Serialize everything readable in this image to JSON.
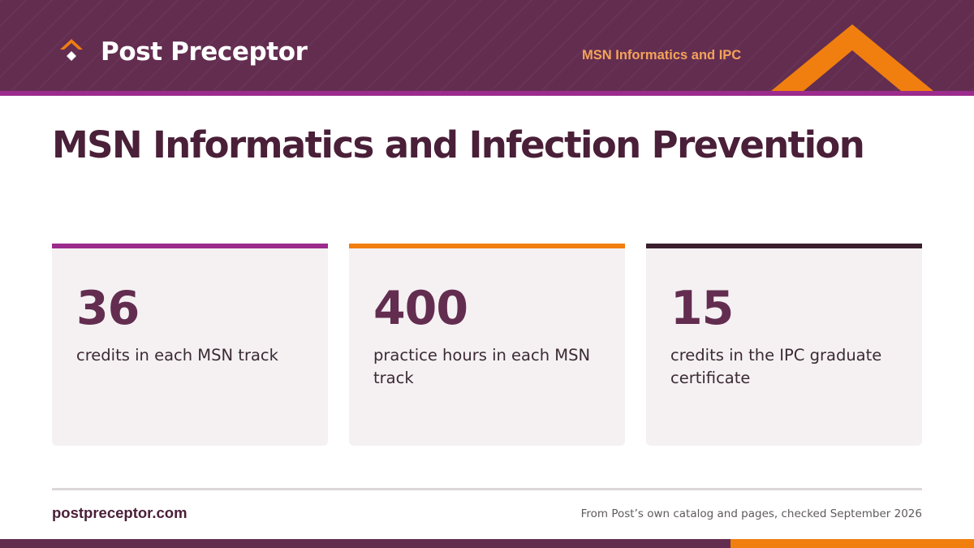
{
  "header": {
    "brand_name": "Post Preceptor",
    "tag": "MSN Informatics and IPC",
    "logo_icon": "roof-chevron-icon",
    "decoration_icon": "roof-outline-icon"
  },
  "page": {
    "title": "MSN Informatics and Infection Prevention"
  },
  "stats": [
    {
      "value": "36",
      "label": "credits in each MSN track",
      "accent": "#9b2b8c"
    },
    {
      "value": "400",
      "label": "practice hours in each MSN track",
      "accent": "#f07f10"
    },
    {
      "value": "15",
      "label": "credits in the IPC graduate certificate",
      "accent": "#3a1e2e"
    }
  ],
  "footer": {
    "url": "postpreceptor.com",
    "source_note": "From Post’s own catalog and pages, checked September 2026"
  },
  "colors": {
    "brand_plum": "#632d50",
    "brand_magenta": "#9b2b8c",
    "brand_orange": "#f07f10",
    "card_background": "#f5f1f3"
  }
}
